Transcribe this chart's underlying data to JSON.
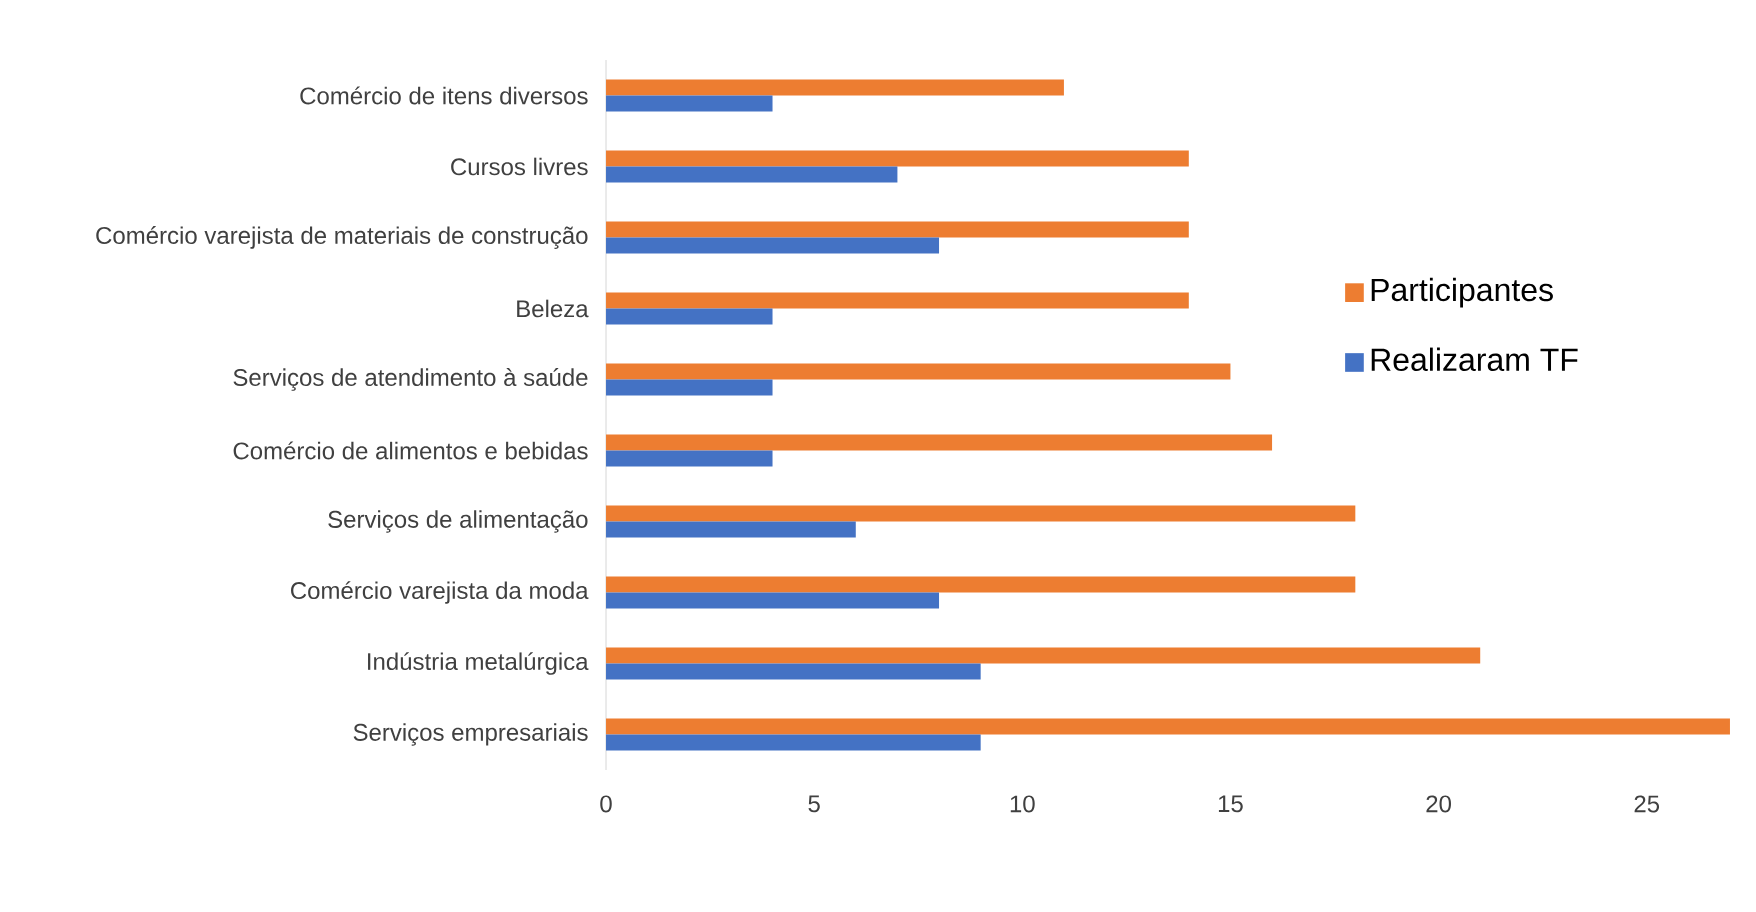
{
  "chart_data": {
    "type": "bar",
    "orientation": "horizontal",
    "categories": [
      "Comércio de itens diversos",
      "Cursos livres",
      "Comércio varejista de materiais de construção",
      "Beleza",
      "Serviços de atendimento à saúde",
      "Comércio de alimentos e bebidas",
      "Serviços de alimentação",
      "Comércio varejista da moda",
      "Indústria metalúrgica",
      "Serviços empresariais"
    ],
    "series": [
      {
        "name": "Participantes",
        "color": "#ed7d31",
        "values": [
          11,
          14,
          14,
          14,
          15,
          16,
          18,
          18,
          21,
          27
        ]
      },
      {
        "name": "Realizaram TF",
        "color": "#4472c4",
        "values": [
          4,
          7,
          8,
          4,
          4,
          4,
          6,
          8,
          9,
          9
        ]
      }
    ],
    "xlim": [
      0,
      27
    ],
    "xticks": [
      0,
      5,
      10,
      15,
      20,
      25
    ],
    "grid": false,
    "legend": "right"
  }
}
